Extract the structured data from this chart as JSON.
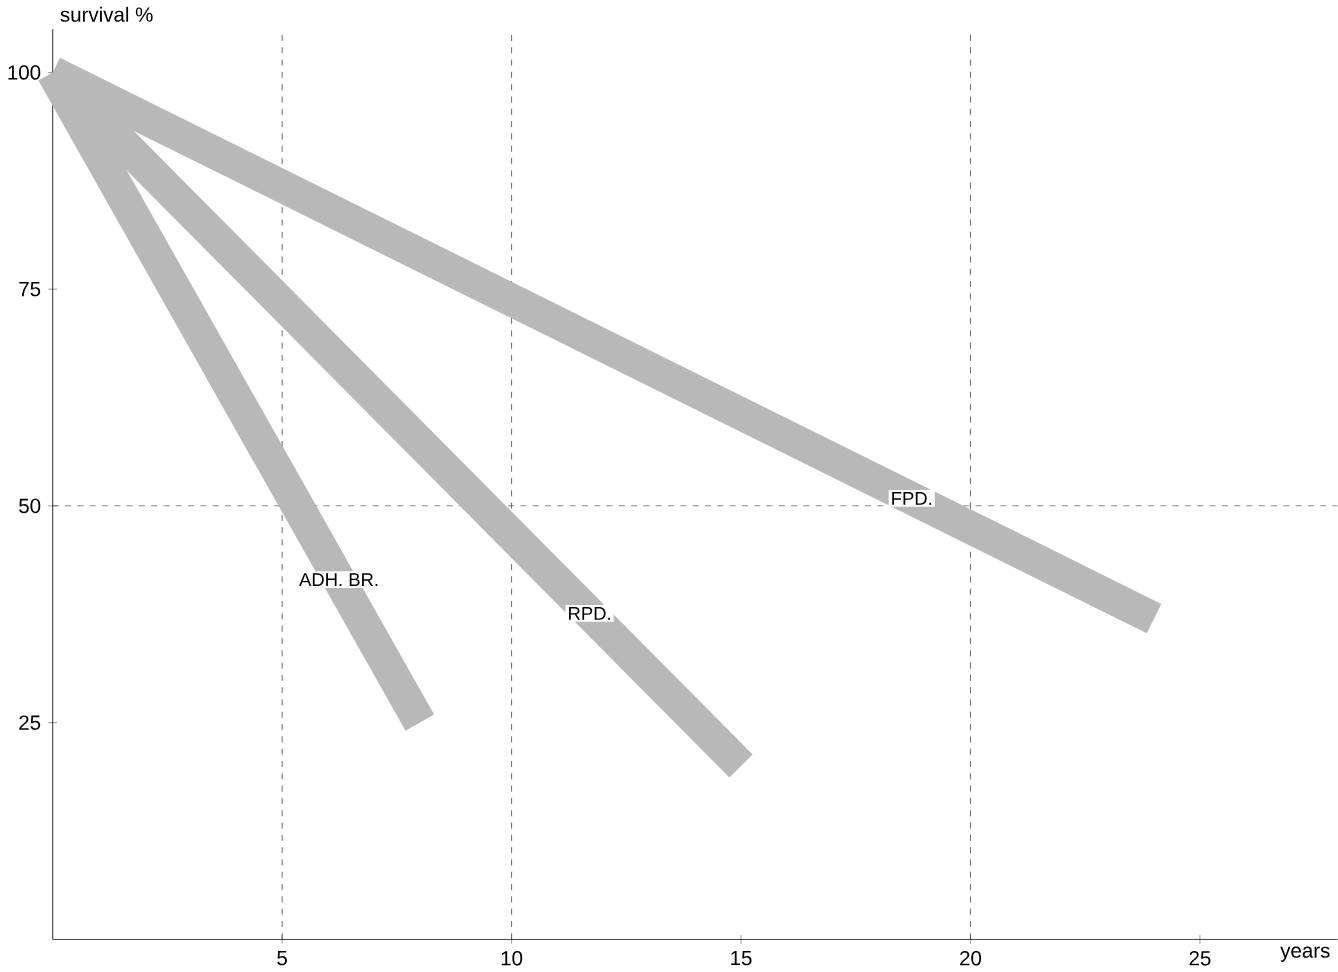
{
  "chart_data": {
    "type": "line",
    "xlabel": "years",
    "ylabel": "survival %",
    "xlim": [
      0,
      28
    ],
    "ylim": [
      0,
      105
    ],
    "xticks": [
      5,
      10,
      15,
      20,
      25
    ],
    "yticks": [
      25,
      50,
      75,
      100
    ],
    "series": [
      {
        "name": "ADH. BR.",
        "color": "#b8b8b8",
        "x": [
          0,
          8
        ],
        "values": [
          100,
          25
        ]
      },
      {
        "name": "RPD.",
        "color": "#b8b8b8",
        "x": [
          0,
          15
        ],
        "values": [
          100,
          20
        ]
      },
      {
        "name": "FPD.",
        "color": "#b8b8b8",
        "x": [
          0,
          24
        ],
        "values": [
          100,
          37
        ]
      }
    ],
    "ref_lines": [
      {
        "axis": "x",
        "value": 5
      },
      {
        "axis": "x",
        "value": 10
      },
      {
        "axis": "x",
        "value": 20
      },
      {
        "axis": "y",
        "value": 50
      }
    ],
    "grid": false,
    "marker": "none",
    "line_style": "solid"
  }
}
